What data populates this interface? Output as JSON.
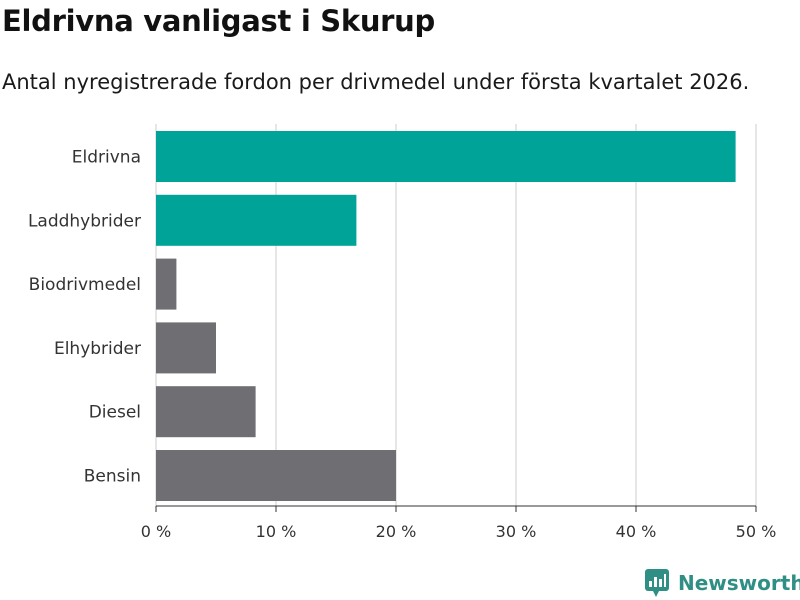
{
  "title": "Eldrivna vanligast i Skurup",
  "subtitle": "Antal nyregistrerade fordon per drivmedel under första kvartalet 2026.",
  "brand": {
    "name": "Newsworthy",
    "icon": "newsworthy-logo-icon"
  },
  "colors": {
    "highlight": "#00a398",
    "default": "#6e6e73",
    "grid": "#dddddd",
    "brand": "#2f8f84"
  },
  "chart_data": {
    "type": "bar",
    "orientation": "horizontal",
    "categories": [
      "Eldrivna",
      "Laddhybrider",
      "Biodrivmedel",
      "Elhybrider",
      "Diesel",
      "Bensin"
    ],
    "values": [
      48.3,
      16.7,
      1.7,
      5.0,
      8.3,
      20.0
    ],
    "highlighted": [
      true,
      true,
      false,
      false,
      false,
      false
    ],
    "xlim": [
      0,
      50
    ],
    "xticks": [
      0,
      10,
      20,
      30,
      40,
      50
    ],
    "xtick_labels": [
      "0 %",
      "10 %",
      "20 %",
      "30 %",
      "40 %",
      "50 %"
    ],
    "grid": true
  }
}
